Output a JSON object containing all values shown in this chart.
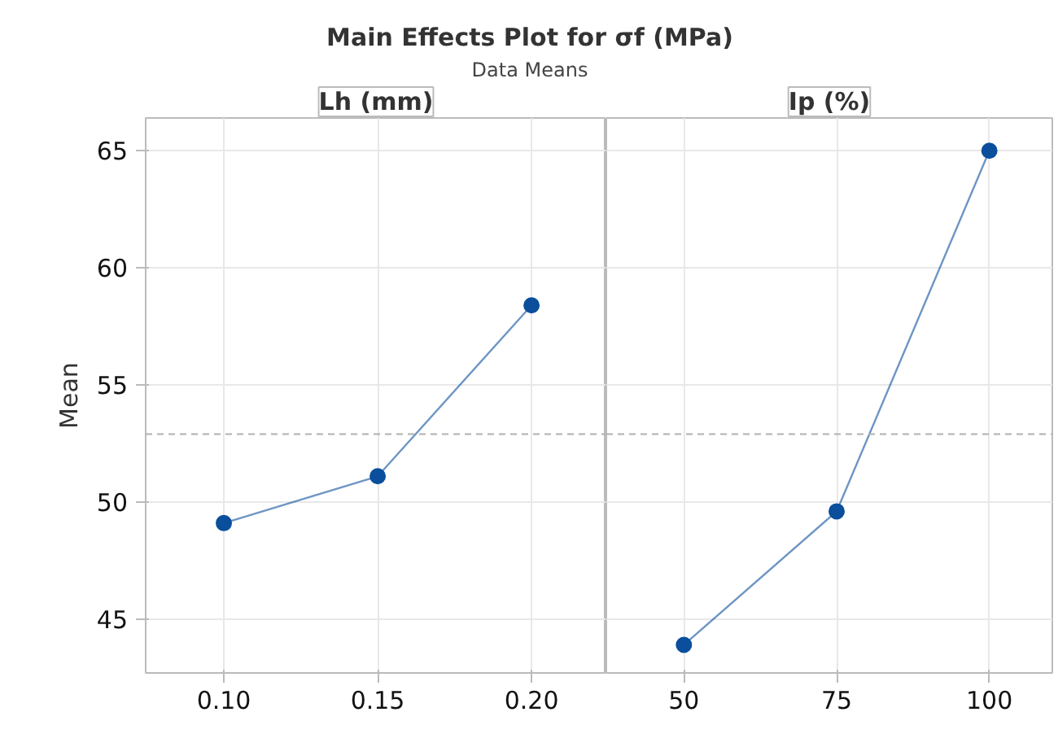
{
  "chart_data": [
    {
      "type": "line",
      "title": "Main Effects Plot for σf (MPa)",
      "subtitle": "Data Means",
      "xlabel": "Lh (mm)",
      "ylabel": "Mean",
      "x": [
        0.1,
        0.15,
        0.2
      ],
      "series": [
        {
          "color": "#0b4f9c",
          "values": [
            49.1,
            51.1,
            58.4
          ]
        }
      ],
      "xlim": [
        0.0746,
        0.2243
      ],
      "xticks": [
        {
          "value": 0.1,
          "label": "0.10"
        },
        {
          "value": 0.15,
          "label": "0.15"
        },
        {
          "value": 0.2,
          "label": "0.20"
        }
      ],
      "ylim": [
        42.7,
        66.4
      ],
      "yticks": [
        45,
        50,
        55,
        60,
        65
      ],
      "ref_lines": [
        {
          "axis": "y",
          "value": 52.9,
          "color": "#b0b0b0",
          "line_style": "dashed"
        }
      ],
      "grid": true,
      "marker": "circle"
    },
    {
      "type": "line",
      "xlabel": "Ip (%)",
      "x": [
        50,
        75,
        100
      ],
      "series": [
        {
          "color": "#0b4f9c",
          "values": [
            43.9,
            49.6,
            65.0
          ]
        }
      ],
      "xlim": [
        37.3,
        110.3
      ],
      "xticks": [
        50,
        75,
        100
      ],
      "ylim": [
        42.7,
        66.4
      ],
      "yticks": [
        45,
        50,
        55,
        60,
        65
      ],
      "ref_lines": [
        {
          "axis": "y",
          "value": 52.9,
          "color": "#b0b0b0",
          "line_style": "dashed"
        }
      ],
      "grid": true,
      "marker": "circle",
      "tick_labels": "x"
    }
  ]
}
